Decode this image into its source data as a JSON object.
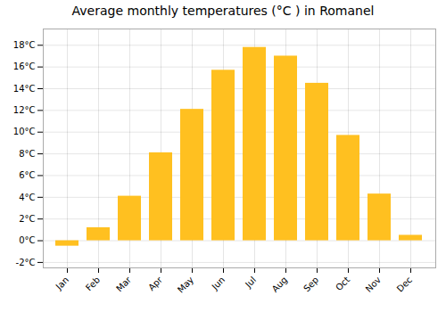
{
  "chart_data": {
    "type": "bar",
    "title": "Average monthly temperatures (°C ) in Romanel",
    "categories": [
      "Jan",
      "Feb",
      "Mar",
      "Apr",
      "May",
      "Jun",
      "Jul",
      "Aug",
      "Sep",
      "Oct",
      "Nov",
      "Dec"
    ],
    "values": [
      -0.5,
      1.2,
      4.1,
      8.1,
      12.1,
      15.7,
      17.8,
      17.0,
      14.5,
      9.7,
      4.3,
      0.5
    ],
    "color": "#FFC020",
    "ylim": [
      -2.5,
      19.5
    ],
    "yticks": [
      {
        "value": -2,
        "label": "-2°C"
      },
      {
        "value": 0,
        "label": "0°C"
      },
      {
        "value": 2,
        "label": "2°C"
      },
      {
        "value": 4,
        "label": "4°C"
      },
      {
        "value": 6,
        "label": "6°C"
      },
      {
        "value": 8,
        "label": "8°C"
      },
      {
        "value": 10,
        "label": "10°C"
      },
      {
        "value": 12,
        "label": "12°C"
      },
      {
        "value": 14,
        "label": "14°C"
      },
      {
        "value": 16,
        "label": "16°C"
      },
      {
        "value": 18,
        "label": "18°C"
      }
    ],
    "grid": true
  }
}
